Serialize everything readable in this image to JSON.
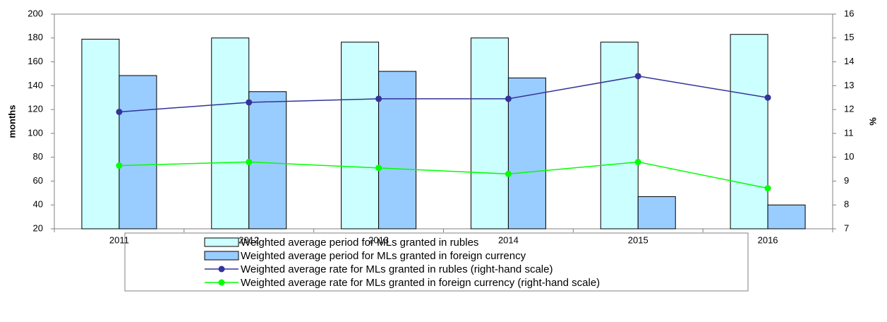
{
  "chart_data": {
    "type": "bar",
    "categories": [
      "2011",
      "2012",
      "2013",
      "2014",
      "2015",
      "2016"
    ],
    "y_label": "months",
    "y2_label": "%",
    "ylim": [
      20,
      200
    ],
    "yticks": [
      20,
      40,
      60,
      80,
      100,
      120,
      140,
      160,
      180,
      200
    ],
    "y2lim": [
      7,
      16
    ],
    "y2ticks": [
      7,
      8,
      9,
      10,
      11,
      12,
      13,
      14,
      15,
      16
    ],
    "series": [
      {
        "name": "Weighted average period for MLs granted in rubles",
        "type": "bar",
        "color": "#ccffff",
        "values": [
          179,
          180,
          176.5,
          180,
          176.5,
          183
        ]
      },
      {
        "name": "Weighted average period for MLs granted in foreign currency",
        "type": "bar",
        "color": "#99ccff",
        "values": [
          148.5,
          135,
          152,
          146.5,
          47,
          40
        ]
      },
      {
        "name": "Weighted average rate for MLs granted in rubles (right-hand scale)",
        "type": "line",
        "axis": "y2",
        "color": "#333399",
        "values": [
          11.9,
          12.3,
          12.45,
          12.45,
          13.4,
          12.5
        ]
      },
      {
        "name": "Weighted average rate for MLs granted in foreign currency (right-hand scale)",
        "type": "line",
        "axis": "y2",
        "color": "#00ff00",
        "values": [
          9.65,
          9.8,
          9.55,
          9.3,
          9.8,
          8.7
        ]
      }
    ]
  }
}
